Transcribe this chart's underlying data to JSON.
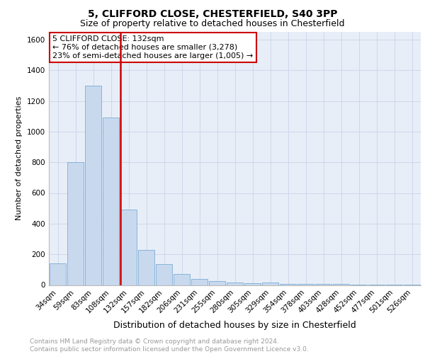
{
  "title1": "5, CLIFFORD CLOSE, CHESTERFIELD, S40 3PP",
  "title2": "Size of property relative to detached houses in Chesterfield",
  "xlabel": "Distribution of detached houses by size in Chesterfield",
  "ylabel": "Number of detached properties",
  "categories": [
    "34sqm",
    "59sqm",
    "83sqm",
    "108sqm",
    "132sqm",
    "157sqm",
    "182sqm",
    "206sqm",
    "231sqm",
    "255sqm",
    "280sqm",
    "305sqm",
    "329sqm",
    "354sqm",
    "378sqm",
    "403sqm",
    "428sqm",
    "452sqm",
    "477sqm",
    "501sqm",
    "526sqm"
  ],
  "values": [
    140,
    800,
    1300,
    1090,
    490,
    230,
    135,
    70,
    40,
    25,
    15,
    10,
    15,
    5,
    5,
    5,
    5,
    3,
    3,
    3,
    3
  ],
  "bar_color": "#c8d9ee",
  "bar_edge_color": "#7aadd4",
  "highlight_index": 4,
  "red_line_color": "#cc0000",
  "annotation_text": "5 CLIFFORD CLOSE: 132sqm\n← 76% of detached houses are smaller (3,278)\n23% of semi-detached houses are larger (1,005) →",
  "annotation_box_color": "#ffffff",
  "annotation_box_edge": "#cc0000",
  "ylim": [
    0,
    1650
  ],
  "yticks": [
    0,
    200,
    400,
    600,
    800,
    1000,
    1200,
    1400,
    1600
  ],
  "grid_color": "#c8d4e8",
  "background_color": "#e8eef8",
  "footer": "Contains HM Land Registry data © Crown copyright and database right 2024.\nContains public sector information licensed under the Open Government Licence v3.0.",
  "title1_fontsize": 10,
  "title2_fontsize": 9,
  "xlabel_fontsize": 9,
  "ylabel_fontsize": 8,
  "tick_fontsize": 7.5,
  "annotation_fontsize": 8,
  "footer_fontsize": 6.5
}
